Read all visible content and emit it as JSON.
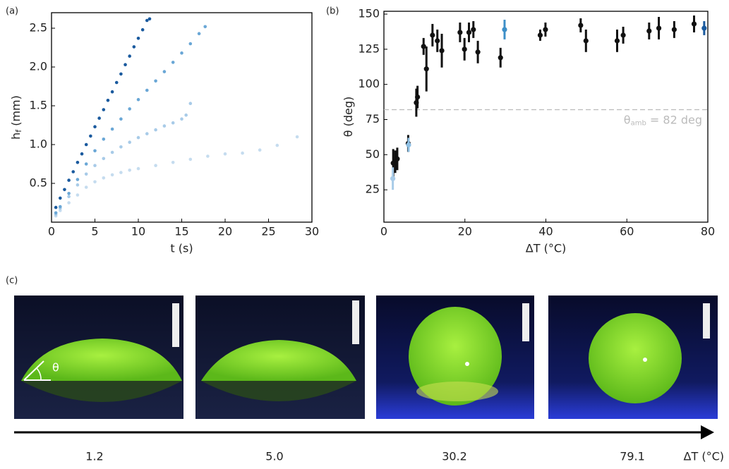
{
  "chart_data": [
    {
      "type": "scatter",
      "panel": "(a)",
      "xlabel": "t  (s)",
      "ylabel": "h",
      "ylabel_sub": "f",
      "ylabel_unit": " (mm)",
      "xlim": [
        0,
        30
      ],
      "ylim": [
        0,
        2.7
      ],
      "xticks": [
        0,
        5,
        10,
        15,
        20,
        25,
        30
      ],
      "yticks": [
        0.5,
        {
          "value": 1,
          "label": "1.0"
        },
        1.5,
        {
          "value": 2,
          "label": "2.0"
        },
        2.5
      ],
      "series": [
        {
          "color": "#c5dcef",
          "x": [
            0.5,
            1,
            2,
            3,
            4,
            5,
            6,
            7,
            8,
            9,
            10,
            12,
            14,
            16,
            18,
            20,
            22,
            24,
            26,
            28.3
          ],
          "values": [
            0.08,
            0.15,
            0.25,
            0.35,
            0.45,
            0.52,
            0.57,
            0.61,
            0.64,
            0.67,
            0.69,
            0.73,
            0.77,
            0.81,
            0.85,
            0.88,
            0.89,
            0.93,
            0.99,
            1.1
          ]
        },
        {
          "color": "#a8cbe8",
          "x": [
            0.5,
            1,
            2,
            3,
            4,
            5,
            6,
            7,
            8,
            9,
            10,
            11,
            12,
            13,
            14,
            15,
            15.5,
            16
          ],
          "values": [
            0.1,
            0.18,
            0.33,
            0.48,
            0.62,
            0.73,
            0.82,
            0.9,
            0.97,
            1.03,
            1.09,
            1.14,
            1.19,
            1.24,
            1.28,
            1.33,
            1.38,
            1.53
          ]
        },
        {
          "color": "#6aa7d6",
          "x": [
            0.5,
            1,
            2,
            3,
            4,
            5,
            6,
            7,
            8,
            9,
            10,
            11,
            12,
            13,
            14,
            15,
            16,
            17,
            17.7
          ],
          "values": [
            0.12,
            0.2,
            0.37,
            0.55,
            0.75,
            0.92,
            1.07,
            1.2,
            1.33,
            1.46,
            1.58,
            1.7,
            1.82,
            1.94,
            2.06,
            2.18,
            2.3,
            2.43,
            2.52
          ]
        },
        {
          "color": "#1a5a9e",
          "x": [
            0.5,
            1,
            1.5,
            2,
            2.5,
            3,
            3.5,
            4,
            4.5,
            5,
            5.5,
            6,
            6.5,
            7,
            7.5,
            8,
            8.5,
            9,
            9.5,
            10,
            10.5,
            11,
            11.3
          ],
          "values": [
            0.19,
            0.31,
            0.42,
            0.54,
            0.65,
            0.77,
            0.88,
            1.0,
            1.11,
            1.23,
            1.34,
            1.45,
            1.57,
            1.68,
            1.8,
            1.91,
            2.03,
            2.14,
            2.26,
            2.37,
            2.48,
            2.6,
            2.62
          ]
        }
      ]
    },
    {
      "type": "errorbar",
      "panel": "(b)",
      "xlabel": "ΔT (°C)",
      "ylabel": "θ (deg)",
      "xlim": [
        0,
        80
      ],
      "ylim": [
        2,
        152
      ],
      "xticks": [
        0,
        20,
        40,
        60,
        80
      ],
      "yticks": [
        25,
        50,
        75,
        100,
        125,
        150
      ],
      "hline": {
        "value": 82,
        "color": "#bbbbbb",
        "label": "θ",
        "label_sub": "amb",
        "label_rest": " = 82 deg"
      },
      "series": [
        {
          "color": "#111111",
          "x": [
            2.3,
            2.8,
            3.3,
            6,
            8,
            8.3,
            9.8,
            10.5,
            12,
            13.2,
            14.3,
            18.8,
            19.9,
            21,
            22.1,
            23.2,
            28.8,
            38.6,
            39.9,
            48.6,
            49.9,
            57.6,
            59.1,
            65.5,
            67.9,
            71.7,
            76.6
          ],
          "values": [
            44,
            45,
            47,
            58,
            87,
            91,
            127,
            111,
            135,
            131,
            124,
            137,
            125,
            137,
            139,
            123,
            119,
            135,
            139,
            142,
            131,
            131,
            135,
            138,
            140,
            139,
            143
          ],
          "errors": [
            10,
            8,
            8,
            6,
            10,
            8,
            6,
            16,
            8,
            8,
            12,
            7,
            8,
            7,
            6,
            8,
            7,
            4,
            5,
            5,
            8,
            8,
            6,
            6,
            8,
            6,
            6
          ]
        },
        {
          "color": "#a8cbe8",
          "x": [
            2.2
          ],
          "values": [
            33
          ],
          "errors": [
            8
          ]
        },
        {
          "color": "#8fc0e4",
          "x": [
            6.1
          ],
          "values": [
            57
          ],
          "errors": [
            5
          ]
        },
        {
          "color": "#3d8fc8",
          "x": [
            29.8
          ],
          "values": [
            139
          ],
          "errors": [
            7
          ]
        },
        {
          "color": "#1a5a9e",
          "x": [
            79.1
          ],
          "values": [
            140
          ],
          "errors": [
            5
          ]
        }
      ]
    }
  ],
  "panel_c": {
    "label": "(c)",
    "theta": "θ",
    "labels": [
      "1.2",
      "5.0",
      "30.2",
      "79.1"
    ],
    "axis_label": "ΔT (°C)"
  }
}
